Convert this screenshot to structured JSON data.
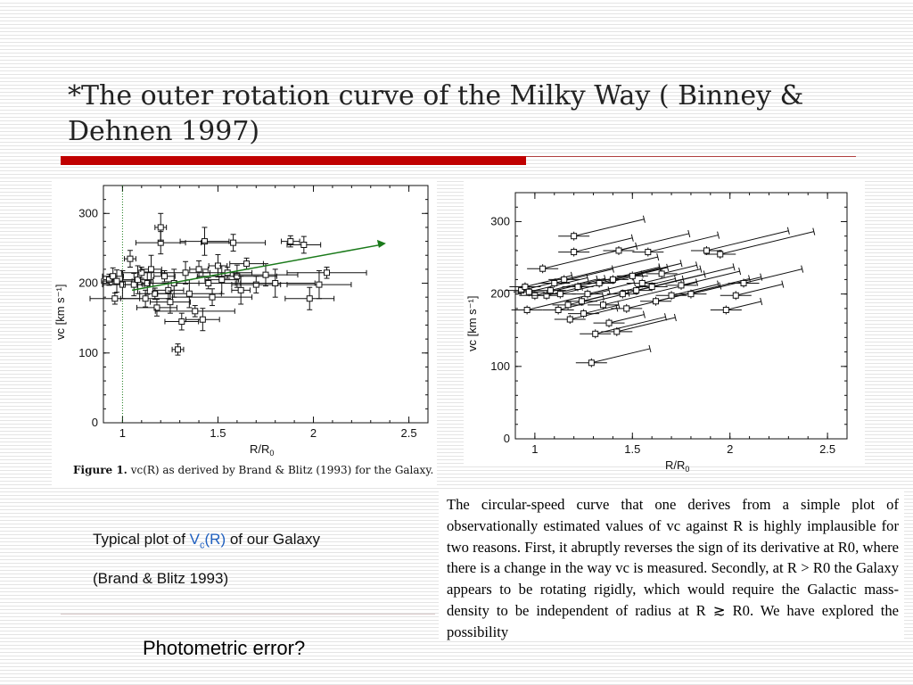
{
  "slide": {
    "title": "*The outer rotation curve of the Milky Way ( Binney & Dehnen 1997)",
    "caption_figure": "Figure 1.",
    "caption_rest": "vc(R) as derived by Brand & Blitz (1993) for the Galaxy.",
    "typical_prefix": "Typical plot of ",
    "typical_v": "V",
    "typical_sub": "c",
    "typical_r": "(R)",
    "typical_suffix": " of our Galaxy",
    "typical_ref": "(Brand & Blitz 1993)",
    "photometric": "Photometric error?",
    "quote": "The circular-speed curve that one derives from a simple plot of observationally estimated values of vc against R is highly implausible for two reasons. First, it abruptly reverses the sign of its derivative at R0, where there is a change in the way vc is measured. Secondly, at R > R0 the Galaxy appears to be rotating rigidly, which would require the Galactic mass-density to be independent of radius at R ≳ R0. We have explored the possibility"
  },
  "colors": {
    "title_bar": "#c00000",
    "arrow": "#1a7a1a",
    "link_blue": "#1f5fbf"
  },
  "chart_data": [
    {
      "type": "scatter",
      "title": "",
      "xlabel": "R/R0",
      "ylabel": "vc [km s^-1]",
      "xlim": [
        0.9,
        2.6
      ],
      "ylim": [
        0,
        340
      ],
      "x_ticks": [
        "1",
        "1.5",
        "2",
        "2.5"
      ],
      "y_ticks": [
        "0",
        "100",
        "200",
        "300"
      ],
      "reference_line_x": 1.0,
      "trend_arrow": {
        "from": [
          1.05,
          190
        ],
        "to": [
          2.38,
          257
        ]
      },
      "points": [
        {
          "x": 0.93,
          "y": 205
        },
        {
          "x": 0.95,
          "y": 210
        },
        {
          "x": 0.97,
          "y": 203
        },
        {
          "x": 1.0,
          "y": 198
        },
        {
          "x": 0.96,
          "y": 178
        },
        {
          "x": 1.04,
          "y": 235
        },
        {
          "x": 1.06,
          "y": 198
        },
        {
          "x": 1.08,
          "y": 205
        },
        {
          "x": 1.1,
          "y": 215
        },
        {
          "x": 1.12,
          "y": 178
        },
        {
          "x": 1.13,
          "y": 200
        },
        {
          "x": 1.15,
          "y": 220
        },
        {
          "x": 1.17,
          "y": 185
        },
        {
          "x": 1.18,
          "y": 165
        },
        {
          "x": 1.2,
          "y": 258
        },
        {
          "x": 1.2,
          "y": 280
        },
        {
          "x": 1.22,
          "y": 210
        },
        {
          "x": 1.24,
          "y": 190
        },
        {
          "x": 1.25,
          "y": 173
        },
        {
          "x": 1.27,
          "y": 200
        },
        {
          "x": 1.29,
          "y": 105
        },
        {
          "x": 1.31,
          "y": 145
        },
        {
          "x": 1.33,
          "y": 215
        },
        {
          "x": 1.35,
          "y": 185
        },
        {
          "x": 1.38,
          "y": 160
        },
        {
          "x": 1.4,
          "y": 220
        },
        {
          "x": 1.42,
          "y": 148
        },
        {
          "x": 1.43,
          "y": 260
        },
        {
          "x": 1.45,
          "y": 200
        },
        {
          "x": 1.47,
          "y": 180
        },
        {
          "x": 1.5,
          "y": 225
        },
        {
          "x": 1.52,
          "y": 205
        },
        {
          "x": 1.55,
          "y": 215
        },
        {
          "x": 1.58,
          "y": 258
        },
        {
          "x": 1.6,
          "y": 210
        },
        {
          "x": 1.62,
          "y": 190
        },
        {
          "x": 1.65,
          "y": 228
        },
        {
          "x": 1.7,
          "y": 198
        },
        {
          "x": 1.75,
          "y": 212
        },
        {
          "x": 1.8,
          "y": 200
        },
        {
          "x": 1.88,
          "y": 260
        },
        {
          "x": 1.95,
          "y": 255
        },
        {
          "x": 1.98,
          "y": 178
        },
        {
          "x": 2.03,
          "y": 198
        },
        {
          "x": 2.07,
          "y": 215
        }
      ]
    },
    {
      "type": "scatter",
      "title": "",
      "xlabel": "R/R0",
      "ylabel": "vc [km s^-1]",
      "xlim": [
        0.9,
        2.6
      ],
      "ylim": [
        0,
        340
      ],
      "x_ticks": [
        "1",
        "1.5",
        "2",
        "2.5"
      ],
      "y_ticks": [
        "0",
        "100",
        "200",
        "300"
      ],
      "note": "each point shown with a line sloping to larger radius and higher velocity",
      "points": [
        {
          "x": 0.93,
          "y": 205
        },
        {
          "x": 0.95,
          "y": 210
        },
        {
          "x": 0.97,
          "y": 203
        },
        {
          "x": 1.0,
          "y": 198
        },
        {
          "x": 0.96,
          "y": 178
        },
        {
          "x": 1.04,
          "y": 235
        },
        {
          "x": 1.06,
          "y": 198
        },
        {
          "x": 1.08,
          "y": 205
        },
        {
          "x": 1.1,
          "y": 215
        },
        {
          "x": 1.12,
          "y": 178
        },
        {
          "x": 1.13,
          "y": 200
        },
        {
          "x": 1.15,
          "y": 220
        },
        {
          "x": 1.17,
          "y": 185
        },
        {
          "x": 1.18,
          "y": 165
        },
        {
          "x": 1.2,
          "y": 258
        },
        {
          "x": 1.2,
          "y": 280
        },
        {
          "x": 1.22,
          "y": 210
        },
        {
          "x": 1.24,
          "y": 190
        },
        {
          "x": 1.25,
          "y": 173
        },
        {
          "x": 1.27,
          "y": 200
        },
        {
          "x": 1.29,
          "y": 105
        },
        {
          "x": 1.31,
          "y": 145
        },
        {
          "x": 1.33,
          "y": 215
        },
        {
          "x": 1.35,
          "y": 185
        },
        {
          "x": 1.38,
          "y": 160
        },
        {
          "x": 1.4,
          "y": 220
        },
        {
          "x": 1.42,
          "y": 148
        },
        {
          "x": 1.43,
          "y": 260
        },
        {
          "x": 1.45,
          "y": 200
        },
        {
          "x": 1.47,
          "y": 180
        },
        {
          "x": 1.5,
          "y": 225
        },
        {
          "x": 1.52,
          "y": 205
        },
        {
          "x": 1.55,
          "y": 215
        },
        {
          "x": 1.58,
          "y": 258
        },
        {
          "x": 1.6,
          "y": 210
        },
        {
          "x": 1.62,
          "y": 190
        },
        {
          "x": 1.65,
          "y": 228
        },
        {
          "x": 1.7,
          "y": 198
        },
        {
          "x": 1.75,
          "y": 212
        },
        {
          "x": 1.8,
          "y": 200
        },
        {
          "x": 1.88,
          "y": 260
        },
        {
          "x": 1.95,
          "y": 255
        },
        {
          "x": 1.98,
          "y": 178
        },
        {
          "x": 2.03,
          "y": 198
        },
        {
          "x": 2.07,
          "y": 215
        }
      ]
    }
  ]
}
